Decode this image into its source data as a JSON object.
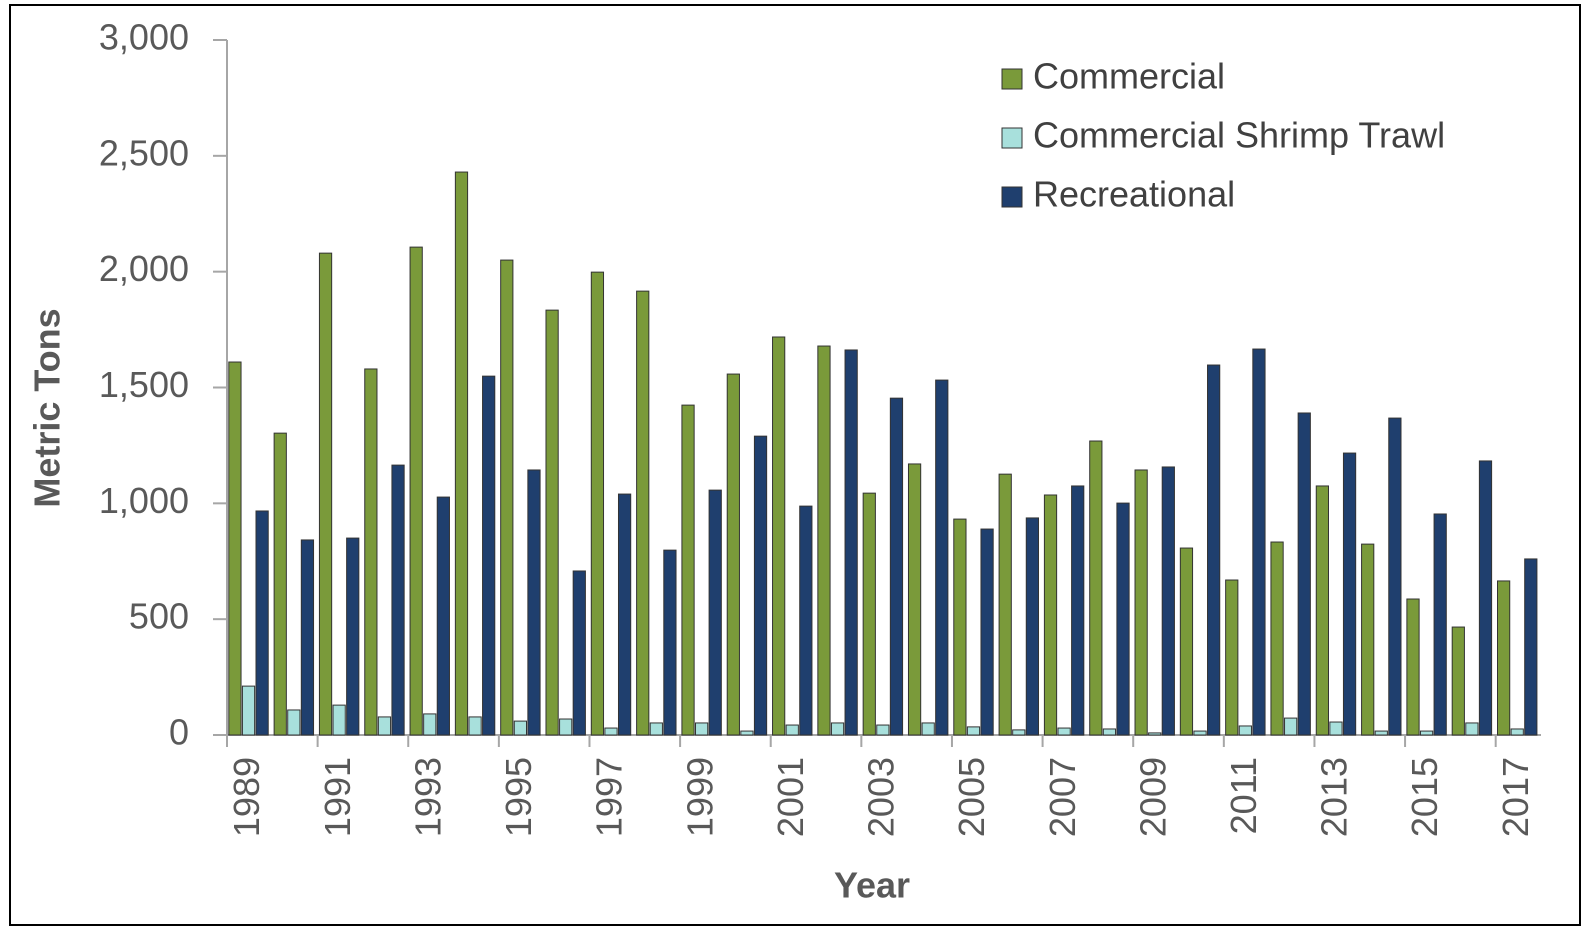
{
  "chart_data": {
    "type": "bar",
    "y_axis_title": "Metric Tons",
    "x_axis_title": "Year",
    "categories": [
      "1989",
      null,
      "1991",
      null,
      "1993",
      null,
      "1995",
      null,
      "1997",
      null,
      "1999",
      null,
      "2001",
      null,
      "2003",
      null,
      "2005",
      null,
      "2007",
      null,
      "2009",
      null,
      "2011",
      null,
      "2013",
      null,
      "2015",
      null,
      "2017"
    ],
    "series": [
      {
        "name": "Commercial",
        "color": "#7a9a3a",
        "values": [
          1610,
          1303,
          2080,
          1580,
          2106,
          2430,
          2050,
          1834,
          1998,
          1916,
          1424,
          1558,
          1718,
          1679,
          1044,
          1170,
          932,
          1126,
          1036,
          1269,
          1144,
          807,
          669,
          833,
          1075,
          824,
          587,
          466,
          665
        ]
      },
      {
        "name": "Commercial Shrimp Trawl",
        "color": "#a8e0dc",
        "values": [
          211,
          108,
          129,
          78,
          91,
          78,
          60,
          69,
          30,
          52,
          52,
          17,
          43,
          52,
          43,
          52,
          35,
          22,
          30,
          26,
          9,
          17,
          39,
          73,
          56,
          17,
          17,
          52,
          26
        ]
      },
      {
        "name": "Recreational",
        "color": "#1f3f6e",
        "values": [
          967,
          842,
          850,
          1165,
          1027,
          1549,
          1144,
          708,
          1040,
          798,
          1057,
          1290,
          988,
          1662,
          1454,
          1532,
          889,
          937,
          1075,
          1001,
          1157,
          1597,
          1666,
          1390,
          1217,
          1368,
          954,
          1183,
          760
        ]
      }
    ],
    "ylim": [
      0,
      3000
    ],
    "yticks": [
      0,
      500,
      {
        "value": 1000,
        "label": "1,000"
      },
      {
        "value": 1500,
        "label": "1,500"
      },
      {
        "value": 2000,
        "label": "2,000"
      },
      {
        "value": 2500,
        "label": "2,500"
      },
      {
        "value": 3000,
        "label": "3,000"
      }
    ],
    "grid": false,
    "legend": "top-right"
  }
}
